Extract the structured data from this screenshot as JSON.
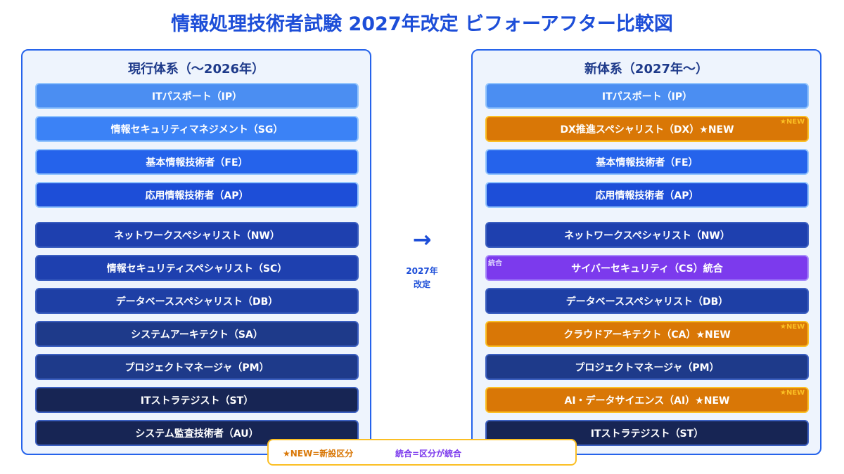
{
  "title": "情報処理技術者試験 2027年改定 ビフォーアフター比較図",
  "left": {
    "header": "現行体系（〜2026年）",
    "items": [
      {
        "label": "ITパスポート（IP）",
        "color": "#4b8ef2"
      },
      {
        "label": "情報セキュリティマネジメント（SG）",
        "color": "#3b82f6"
      },
      {
        "label": "基本情報技術者（FE）",
        "color": "#2563eb"
      },
      {
        "label": "応用情報技術者（AP）",
        "color": "#1d4ed8"
      },
      {
        "label": "ネットワークスペシャリスト（NW）",
        "color": "#1e40af"
      },
      {
        "label": "情報セキュリティスペシャリスト（SC）",
        "color": "#1e40af"
      },
      {
        "label": "データベーススペシャリスト（DB）",
        "color": "#1e3fa5"
      },
      {
        "label": "システムアーキテクト（SA）",
        "color": "#1e3a8a"
      },
      {
        "label": "プロジェクトマネージャ（PM）",
        "color": "#1e3a8a"
      },
      {
        "label": "ITストラテジスト（ST）",
        "color": "#172554"
      },
      {
        "label": "システム監査技術者（AU）",
        "color": "#172554"
      }
    ]
  },
  "right": {
    "header": "新体系（2027年〜）",
    "items": [
      {
        "label": "ITパスポート（IP）",
        "color": "#4b8ef2"
      },
      {
        "label": "DX推進スペシャリスト（DX）★NEW",
        "badge": "★NEW",
        "color": "#d97706"
      },
      {
        "label": "基本情報技術者（FE）",
        "color": "#2563eb"
      },
      {
        "label": "応用情報技術者（AP）",
        "color": "#1d4ed8"
      },
      {
        "label": "ネットワークスペシャリスト（NW）",
        "color": "#1e40af"
      },
      {
        "label": "サイバーセキュリティ（CS）統合",
        "badge": "統合",
        "color": "#7c3aed"
      },
      {
        "label": "データベーススペシャリスト（DB）",
        "color": "#1e3fa5"
      },
      {
        "label": "クラウドアーキテクト（CA）★NEW",
        "badge": "★NEW",
        "color": "#d97706"
      },
      {
        "label": "プロジェクトマネージャ（PM）",
        "color": "#1e3a8a"
      },
      {
        "label": "AI・データサイエンス（AI）★NEW",
        "badge": "★NEW",
        "color": "#d97706"
      },
      {
        "label": "ITストラテジスト（ST）",
        "color": "#172554"
      }
    ]
  },
  "middle": {
    "arrow": "→",
    "line1": "2027年",
    "line2": "改定"
  },
  "legend": {
    "new": "★NEW=新設区分",
    "merged": "統合=区分が統合"
  }
}
